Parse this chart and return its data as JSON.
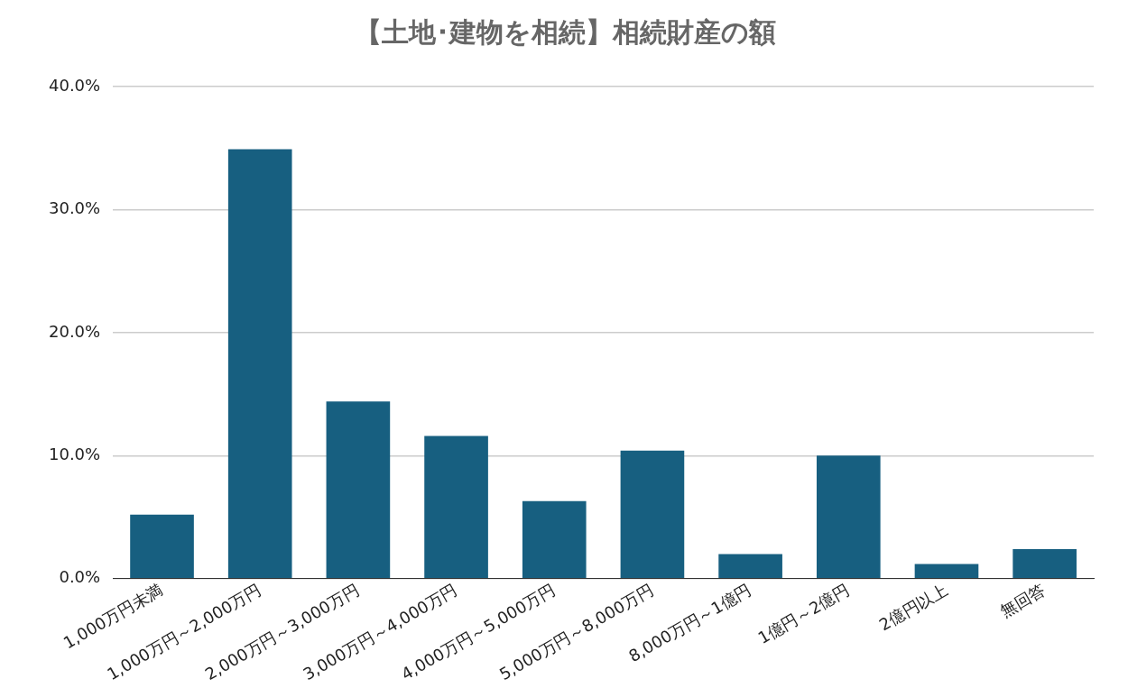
{
  "chart_data": {
    "type": "bar",
    "title": "【土地･建物を相続】相続財産の額",
    "categories": [
      "1,000万円未満",
      "1,000万円～2,000万円",
      "2,000万円～3,000万円",
      "3,000万円～4,000万円",
      "4,000万円～5,000万円",
      "5,000万円～8,000万円",
      "8,000万円～1億円",
      "1億円～2億円",
      "2億円以上",
      "無回答"
    ],
    "values": [
      5.2,
      34.9,
      14.4,
      11.6,
      6.3,
      10.4,
      2.0,
      10.0,
      1.2,
      2.4
    ],
    "color": "#175f80",
    "ylim": [
      0,
      40
    ],
    "yticks": [
      {
        "value": 0,
        "label": "0.0%"
      },
      {
        "value": 10,
        "label": "10.0%"
      },
      {
        "value": 20,
        "label": "20.0%"
      },
      {
        "value": 30,
        "label": "30.0%"
      },
      {
        "value": 40,
        "label": "40.0%"
      }
    ],
    "grid": "y"
  }
}
